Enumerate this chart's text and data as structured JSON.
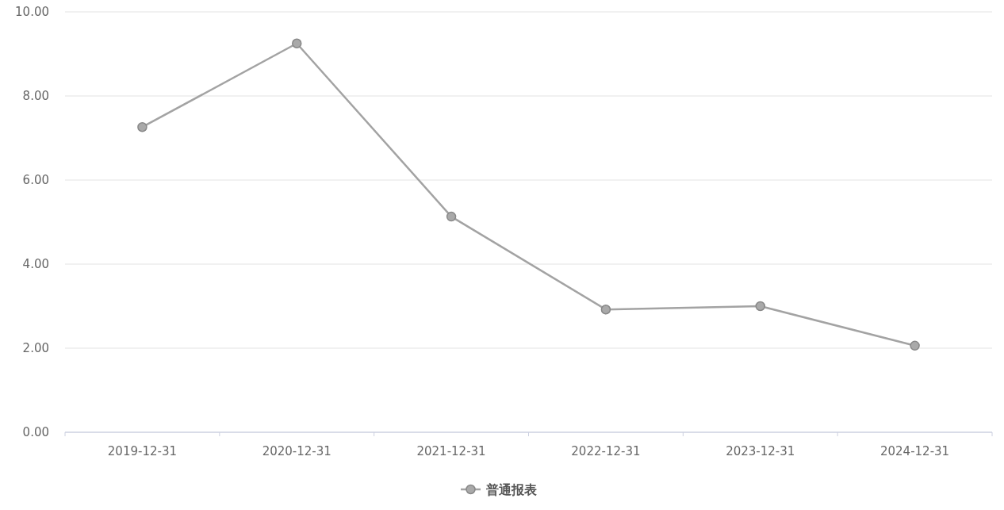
{
  "chart_data": {
    "type": "line",
    "categories": [
      "2019-12-31",
      "2020-12-31",
      "2021-12-31",
      "2022-12-31",
      "2023-12-31",
      "2024-12-31"
    ],
    "series": [
      {
        "name": "普通报表",
        "color": "#a3a3a3",
        "values": [
          7.26,
          9.25,
          5.13,
          2.92,
          3.0,
          2.06
        ]
      }
    ],
    "ylim": [
      0,
      10
    ],
    "yticks": [
      {
        "value": 0,
        "label": "0.00"
      },
      {
        "value": 2,
        "label": "2.00"
      },
      {
        "value": 4,
        "label": "4.00"
      },
      {
        "value": 6,
        "label": "6.00"
      },
      {
        "value": 8,
        "label": "8.00"
      },
      {
        "value": 10,
        "label": "10.00"
      }
    ],
    "grid": "y",
    "legend": "bottom",
    "marker": "circle"
  }
}
